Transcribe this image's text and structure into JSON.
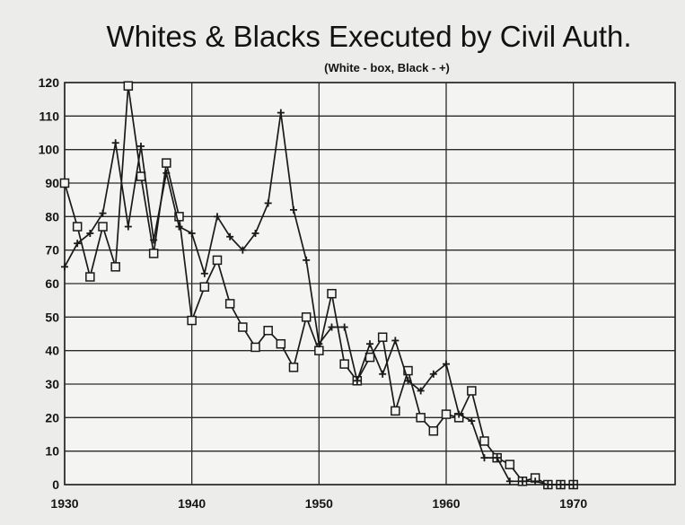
{
  "chart_data": {
    "type": "line",
    "title": "Whites & Blacks Executed by Civil Auth.",
    "subtitle": "(White - box, Black - +)",
    "xlabel": "",
    "ylabel": "",
    "xlim": [
      1930,
      1978
    ],
    "ylim": [
      0,
      120
    ],
    "x_ticks": [
      1930,
      1940,
      1950,
      1960,
      1970
    ],
    "y_ticks": [
      0,
      10,
      20,
      30,
      40,
      50,
      60,
      70,
      80,
      90,
      100,
      110,
      120
    ],
    "grid": true,
    "series": [
      {
        "marker": "box",
        "x": [
          1930,
          1931,
          1932,
          1933,
          1934,
          1935,
          1936,
          1937,
          1938,
          1939,
          1940,
          1941,
          1942,
          1943,
          1944,
          1945,
          1946,
          1947,
          1948,
          1949,
          1950,
          1951,
          1952,
          1953,
          1954,
          1955,
          1956,
          1957,
          1958,
          1959,
          1960,
          1961,
          1962,
          1963,
          1964,
          1965,
          1966,
          1967,
          1968,
          1969,
          1970
        ],
        "values": [
          90,
          77,
          62,
          77,
          65,
          119,
          92,
          69,
          96,
          80,
          49,
          59,
          67,
          54,
          47,
          41,
          46,
          42,
          35,
          50,
          40,
          57,
          36,
          31,
          38,
          44,
          22,
          34,
          20,
          16,
          21,
          20,
          28,
          13,
          8,
          6,
          1,
          2,
          0,
          0,
          0
        ]
      },
      {
        "marker": "plus",
        "x": [
          1930,
          1931,
          1932,
          1933,
          1934,
          1935,
          1936,
          1937,
          1938,
          1939,
          1940,
          1941,
          1942,
          1943,
          1944,
          1945,
          1946,
          1947,
          1948,
          1949,
          1950,
          1951,
          1952,
          1953,
          1954,
          1955,
          1956,
          1957,
          1958,
          1959,
          1960,
          1961,
          1962,
          1963,
          1964,
          1965,
          1966,
          1967,
          1968,
          1969,
          1970
        ],
        "values": [
          65,
          72,
          75,
          81,
          102,
          77,
          101,
          73,
          93,
          77,
          75,
          63,
          80,
          74,
          70,
          75,
          84,
          111,
          82,
          67,
          42,
          47,
          47,
          31,
          42,
          33,
          43,
          31,
          28,
          33,
          36,
          21,
          19,
          8,
          8,
          1,
          1,
          1,
          0,
          0,
          0
        ]
      }
    ]
  }
}
